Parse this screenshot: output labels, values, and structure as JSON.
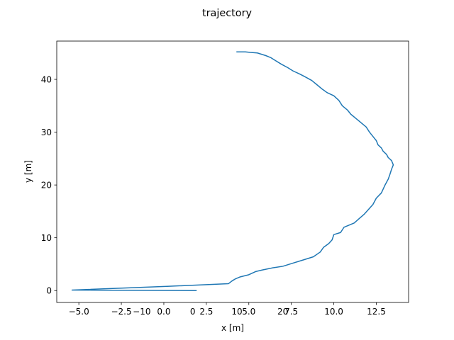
{
  "chart_data": {
    "type": "line",
    "title": "trajectory",
    "xlabel": "x [m]",
    "ylabel": "y [m]",
    "xlim": [
      -6.3,
      14.4
    ],
    "ylim": [
      -2.25,
      47.25
    ],
    "grid": false,
    "x_ticks": [
      {
        "value": -5.0,
        "label": "−5.0"
      },
      {
        "value": -2.5,
        "label": "−2.5"
      },
      {
        "value": 0.0,
        "label": "0.0"
      },
      {
        "value": 2.5,
        "label": "2.5"
      },
      {
        "value": 5.0,
        "label": "5.0"
      },
      {
        "value": 7.5,
        "label": "7.5"
      },
      {
        "value": 10.0,
        "label": "10.0"
      },
      {
        "value": 12.5,
        "label": "12.5"
      }
    ],
    "overlay_x_ticks": [
      {
        "value": -1.3,
        "label": "−10"
      },
      {
        "value": 1.7,
        "label": "0"
      },
      {
        "value": 4.3,
        "label": "10"
      },
      {
        "value": 7.0,
        "label": "20"
      }
    ],
    "y_ticks": [
      {
        "value": 0,
        "label": "0"
      },
      {
        "value": 10,
        "label": "10"
      },
      {
        "value": 20,
        "label": "20"
      },
      {
        "value": 30,
        "label": "30"
      },
      {
        "value": 40,
        "label": "40"
      }
    ],
    "series": [
      {
        "color": "#1f77b4",
        "x": [
          1.9,
          -5.4,
          0.2,
          3.8,
          4.0,
          4.1,
          4.2,
          4.5,
          5.0,
          5.4,
          5.8,
          6.4,
          7.0,
          7.5,
          8.2,
          8.8,
          9.2,
          9.4,
          9.7,
          9.9,
          10.0,
          10.4,
          10.6,
          11.2,
          11.8,
          12.3,
          12.5,
          12.8,
          13.0,
          13.2,
          13.3,
          13.4,
          13.5,
          13.4,
          13.2,
          13.1,
          12.9,
          12.8,
          12.6,
          12.5,
          12.3,
          12.1,
          11.9,
          11.6,
          11.3,
          11.0,
          10.8,
          10.5,
          10.3,
          10.0,
          9.6,
          9.3,
          9.0,
          8.7,
          8.3,
          8.0,
          7.6,
          7.3,
          6.9,
          6.6,
          6.3,
          6.0,
          5.7,
          5.5,
          5.1,
          4.8,
          4.3
        ],
        "y": [
          0.0,
          0.1,
          0.8,
          1.3,
          1.8,
          2.0,
          2.2,
          2.6,
          3.0,
          3.6,
          3.9,
          4.3,
          4.6,
          5.1,
          5.8,
          6.4,
          7.3,
          8.2,
          8.9,
          9.6,
          10.6,
          11.0,
          12.0,
          12.8,
          14.5,
          16.3,
          17.5,
          18.5,
          19.9,
          21.1,
          22.0,
          23.0,
          23.8,
          24.6,
          25.2,
          25.8,
          26.4,
          27.0,
          27.6,
          28.4,
          29.2,
          30.0,
          31.0,
          31.8,
          32.6,
          33.4,
          34.2,
          35.0,
          36.0,
          36.9,
          37.5,
          38.2,
          39.0,
          39.8,
          40.5,
          41.0,
          41.6,
          42.2,
          42.9,
          43.5,
          44.1,
          44.5,
          44.8,
          45.0,
          45.1,
          45.2,
          45.2
        ]
      }
    ]
  }
}
